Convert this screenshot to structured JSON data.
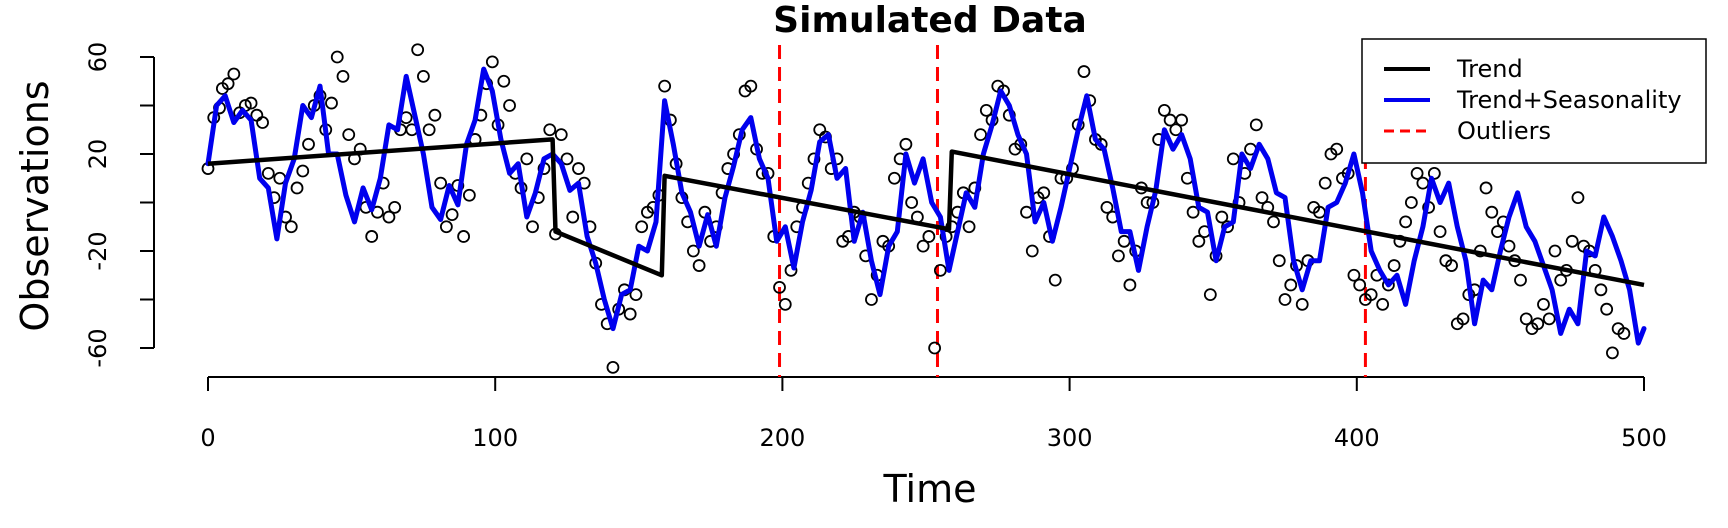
{
  "chart_data": {
    "type": "line",
    "title": "Simulated Data",
    "xlabel": "Time",
    "ylabel": "Observations",
    "xlim": [
      0,
      500
    ],
    "ylim": [
      -60,
      60
    ],
    "x_ticks": [
      "0",
      "100",
      "200",
      "300",
      "400",
      "500"
    ],
    "y_ticks": [
      "-60",
      "-20",
      "20",
      "60"
    ],
    "grid": false,
    "legend_position": "top-right",
    "colors": {
      "trend": "#000000",
      "seasonal": "#0000ee",
      "outlier": "#ff0000",
      "points": "#000000"
    },
    "legend": [
      {
        "label": "Trend",
        "style": "solid",
        "color": "#000000"
      },
      {
        "label": "Trend+Seasonality",
        "style": "solid",
        "color": "#0000ee"
      },
      {
        "label": "Outliers",
        "style": "dashed",
        "color": "#ff0000"
      }
    ],
    "outliers": [
      199,
      254,
      403
    ],
    "trend": [
      [
        0,
        16
      ],
      [
        120,
        26
      ],
      [
        121,
        -12
      ],
      [
        158,
        -30
      ],
      [
        159,
        11
      ],
      [
        258,
        -11
      ],
      [
        259,
        21
      ],
      [
        500,
        -34
      ]
    ],
    "seasonal": [
      [
        0,
        16
      ],
      [
        3,
        40
      ],
      [
        6,
        44
      ],
      [
        9,
        33
      ],
      [
        12,
        38
      ],
      [
        15,
        34
      ],
      [
        18,
        10
      ],
      [
        21,
        6
      ],
      [
        24,
        -15
      ],
      [
        27,
        8
      ],
      [
        30,
        18
      ],
      [
        33,
        40
      ],
      [
        36,
        35
      ],
      [
        39,
        48
      ],
      [
        42,
        20
      ],
      [
        45,
        20
      ],
      [
        48,
        3
      ],
      [
        51,
        -8
      ],
      [
        54,
        6
      ],
      [
        57,
        -3
      ],
      [
        60,
        10
      ],
      [
        63,
        32
      ],
      [
        66,
        30
      ],
      [
        69,
        52
      ],
      [
        72,
        36
      ],
      [
        75,
        20
      ],
      [
        78,
        -2
      ],
      [
        81,
        -7
      ],
      [
        84,
        7
      ],
      [
        87,
        -1
      ],
      [
        90,
        24
      ],
      [
        93,
        34
      ],
      [
        96,
        55
      ],
      [
        99,
        46
      ],
      [
        102,
        26
      ],
      [
        105,
        12
      ],
      [
        108,
        16
      ],
      [
        111,
        -6
      ],
      [
        114,
        4
      ],
      [
        117,
        18
      ],
      [
        120,
        20
      ],
      [
        123,
        16
      ],
      [
        126,
        5
      ],
      [
        129,
        8
      ],
      [
        132,
        -14
      ],
      [
        135,
        -25
      ],
      [
        138,
        -40
      ],
      [
        141,
        -52
      ],
      [
        144,
        -38
      ],
      [
        147,
        -36
      ],
      [
        150,
        -18
      ],
      [
        153,
        -20
      ],
      [
        156,
        -8
      ],
      [
        159,
        42
      ],
      [
        162,
        24
      ],
      [
        165,
        4
      ],
      [
        168,
        -4
      ],
      [
        171,
        -18
      ],
      [
        174,
        -5
      ],
      [
        177,
        -18
      ],
      [
        180,
        2
      ],
      [
        183,
        15
      ],
      [
        186,
        30
      ],
      [
        189,
        35
      ],
      [
        192,
        18
      ],
      [
        195,
        10
      ],
      [
        198,
        -16
      ],
      [
        201,
        -10
      ],
      [
        204,
        -27
      ],
      [
        207,
        -8
      ],
      [
        210,
        5
      ],
      [
        213,
        25
      ],
      [
        216,
        28
      ],
      [
        219,
        10
      ],
      [
        222,
        14
      ],
      [
        225,
        -16
      ],
      [
        228,
        -4
      ],
      [
        231,
        -24
      ],
      [
        234,
        -38
      ],
      [
        237,
        -18
      ],
      [
        240,
        -12
      ],
      [
        243,
        20
      ],
      [
        246,
        8
      ],
      [
        249,
        18
      ],
      [
        252,
        0
      ],
      [
        255,
        -6
      ],
      [
        258,
        -28
      ],
      [
        261,
        -12
      ],
      [
        264,
        4
      ],
      [
        267,
        -2
      ],
      [
        270,
        20
      ],
      [
        273,
        32
      ],
      [
        276,
        46
      ],
      [
        279,
        40
      ],
      [
        282,
        28
      ],
      [
        285,
        20
      ],
      [
        288,
        -8
      ],
      [
        291,
        0
      ],
      [
        294,
        -16
      ],
      [
        297,
        -2
      ],
      [
        300,
        14
      ],
      [
        303,
        30
      ],
      [
        306,
        44
      ],
      [
        309,
        26
      ],
      [
        312,
        22
      ],
      [
        315,
        6
      ],
      [
        318,
        -12
      ],
      [
        321,
        -12
      ],
      [
        324,
        -28
      ],
      [
        327,
        -10
      ],
      [
        330,
        5
      ],
      [
        333,
        30
      ],
      [
        336,
        22
      ],
      [
        339,
        28
      ],
      [
        342,
        18
      ],
      [
        345,
        -2
      ],
      [
        348,
        -4
      ],
      [
        351,
        -24
      ],
      [
        354,
        -10
      ],
      [
        357,
        -8
      ],
      [
        360,
        20
      ],
      [
        363,
        14
      ],
      [
        366,
        24
      ],
      [
        369,
        18
      ],
      [
        372,
        4
      ],
      [
        375,
        2
      ],
      [
        378,
        -24
      ],
      [
        381,
        -36
      ],
      [
        384,
        -24
      ],
      [
        387,
        -24
      ],
      [
        390,
        -2
      ],
      [
        393,
        0
      ],
      [
        396,
        8
      ],
      [
        399,
        20
      ],
      [
        402,
        4
      ],
      [
        405,
        -20
      ],
      [
        408,
        -28
      ],
      [
        411,
        -34
      ],
      [
        414,
        -30
      ],
      [
        417,
        -42
      ],
      [
        420,
        -24
      ],
      [
        423,
        -10
      ],
      [
        426,
        10
      ],
      [
        429,
        0
      ],
      [
        432,
        8
      ],
      [
        435,
        -10
      ],
      [
        438,
        -24
      ],
      [
        441,
        -50
      ],
      [
        444,
        -32
      ],
      [
        447,
        -36
      ],
      [
        450,
        -20
      ],
      [
        453,
        -6
      ],
      [
        456,
        4
      ],
      [
        459,
        -10
      ],
      [
        462,
        -16
      ],
      [
        465,
        -26
      ],
      [
        468,
        -36
      ],
      [
        471,
        -54
      ],
      [
        474,
        -44
      ],
      [
        477,
        -50
      ],
      [
        480,
        -20
      ],
      [
        483,
        -22
      ],
      [
        486,
        -6
      ],
      [
        489,
        -14
      ],
      [
        492,
        -24
      ],
      [
        495,
        -36
      ],
      [
        498,
        -58
      ],
      [
        500,
        -52
      ]
    ],
    "points": [
      [
        0,
        14
      ],
      [
        2,
        35
      ],
      [
        4,
        39
      ],
      [
        5,
        47
      ],
      [
        7,
        49
      ],
      [
        9,
        53
      ],
      [
        11,
        37
      ],
      [
        13,
        40
      ],
      [
        15,
        41
      ],
      [
        17,
        36
      ],
      [
        19,
        33
      ],
      [
        21,
        12
      ],
      [
        23,
        2
      ],
      [
        25,
        10
      ],
      [
        27,
        -6
      ],
      [
        29,
        -10
      ],
      [
        31,
        6
      ],
      [
        33,
        13
      ],
      [
        35,
        24
      ],
      [
        37,
        40
      ],
      [
        39,
        44
      ],
      [
        41,
        30
      ],
      [
        43,
        41
      ],
      [
        45,
        60
      ],
      [
        47,
        52
      ],
      [
        49,
        28
      ],
      [
        51,
        18
      ],
      [
        53,
        22
      ],
      [
        55,
        -2
      ],
      [
        57,
        -14
      ],
      [
        59,
        -4
      ],
      [
        61,
        8
      ],
      [
        63,
        -6
      ],
      [
        65,
        -2
      ],
      [
        67,
        30
      ],
      [
        69,
        35
      ],
      [
        71,
        30
      ],
      [
        73,
        63
      ],
      [
        75,
        52
      ],
      [
        77,
        30
      ],
      [
        79,
        36
      ],
      [
        81,
        8
      ],
      [
        83,
        -10
      ],
      [
        85,
        -5
      ],
      [
        87,
        7
      ],
      [
        89,
        -14
      ],
      [
        91,
        3
      ],
      [
        93,
        26
      ],
      [
        95,
        36
      ],
      [
        97,
        49
      ],
      [
        99,
        58
      ],
      [
        101,
        32
      ],
      [
        103,
        50
      ],
      [
        105,
        40
      ],
      [
        107,
        12
      ],
      [
        109,
        6
      ],
      [
        111,
        18
      ],
      [
        113,
        -10
      ],
      [
        115,
        2
      ],
      [
        117,
        14
      ],
      [
        119,
        30
      ],
      [
        121,
        -13
      ],
      [
        123,
        28
      ],
      [
        125,
        18
      ],
      [
        127,
        -6
      ],
      [
        129,
        14
      ],
      [
        131,
        8
      ],
      [
        133,
        -10
      ],
      [
        135,
        -25
      ],
      [
        137,
        -42
      ],
      [
        139,
        -50
      ],
      [
        141,
        -68
      ],
      [
        143,
        -44
      ],
      [
        145,
        -36
      ],
      [
        147,
        -46
      ],
      [
        149,
        -38
      ],
      [
        151,
        -10
      ],
      [
        153,
        -4
      ],
      [
        155,
        -2
      ],
      [
        157,
        3
      ],
      [
        159,
        48
      ],
      [
        161,
        34
      ],
      [
        163,
        16
      ],
      [
        165,
        2
      ],
      [
        167,
        -8
      ],
      [
        169,
        -20
      ],
      [
        171,
        -26
      ],
      [
        173,
        -4
      ],
      [
        175,
        -16
      ],
      [
        177,
        -10
      ],
      [
        179,
        4
      ],
      [
        181,
        14
      ],
      [
        183,
        20
      ],
      [
        185,
        28
      ],
      [
        187,
        46
      ],
      [
        189,
        48
      ],
      [
        191,
        22
      ],
      [
        193,
        12
      ],
      [
        195,
        12
      ],
      [
        197,
        -14
      ],
      [
        199,
        -35
      ],
      [
        201,
        -42
      ],
      [
        203,
        -28
      ],
      [
        205,
        -10
      ],
      [
        207,
        -2
      ],
      [
        209,
        8
      ],
      [
        211,
        18
      ],
      [
        213,
        30
      ],
      [
        215,
        27
      ],
      [
        217,
        14
      ],
      [
        219,
        18
      ],
      [
        221,
        -16
      ],
      [
        223,
        -14
      ],
      [
        225,
        -4
      ],
      [
        227,
        -6
      ],
      [
        229,
        -22
      ],
      [
        231,
        -40
      ],
      [
        233,
        -30
      ],
      [
        235,
        -16
      ],
      [
        237,
        -18
      ],
      [
        239,
        10
      ],
      [
        241,
        18
      ],
      [
        243,
        24
      ],
      [
        245,
        0
      ],
      [
        247,
        -6
      ],
      [
        249,
        -18
      ],
      [
        251,
        -14
      ],
      [
        253,
        -60
      ],
      [
        255,
        -28
      ],
      [
        257,
        -14
      ],
      [
        259,
        -10
      ],
      [
        261,
        -4
      ],
      [
        263,
        4
      ],
      [
        265,
        -10
      ],
      [
        267,
        6
      ],
      [
        269,
        28
      ],
      [
        271,
        38
      ],
      [
        273,
        34
      ],
      [
        275,
        48
      ],
      [
        277,
        46
      ],
      [
        279,
        36
      ],
      [
        281,
        22
      ],
      [
        283,
        24
      ],
      [
        285,
        -4
      ],
      [
        287,
        -20
      ],
      [
        289,
        2
      ],
      [
        291,
        4
      ],
      [
        293,
        -14
      ],
      [
        295,
        -32
      ],
      [
        297,
        10
      ],
      [
        299,
        10
      ],
      [
        301,
        14
      ],
      [
        303,
        32
      ],
      [
        305,
        54
      ],
      [
        307,
        42
      ],
      [
        309,
        26
      ],
      [
        311,
        24
      ],
      [
        313,
        -2
      ],
      [
        315,
        -6
      ],
      [
        317,
        -22
      ],
      [
        319,
        -16
      ],
      [
        321,
        -34
      ],
      [
        323,
        -20
      ],
      [
        325,
        6
      ],
      [
        327,
        0
      ],
      [
        329,
        0
      ],
      [
        331,
        26
      ],
      [
        333,
        38
      ],
      [
        335,
        34
      ],
      [
        337,
        30
      ],
      [
        339,
        34
      ],
      [
        341,
        10
      ],
      [
        343,
        -4
      ],
      [
        345,
        -16
      ],
      [
        347,
        -12
      ],
      [
        349,
        -38
      ],
      [
        351,
        -22
      ],
      [
        353,
        -6
      ],
      [
        355,
        -10
      ],
      [
        357,
        18
      ],
      [
        359,
        0
      ],
      [
        361,
        12
      ],
      [
        363,
        22
      ],
      [
        365,
        32
      ],
      [
        367,
        2
      ],
      [
        369,
        -2
      ],
      [
        371,
        -8
      ],
      [
        373,
        -24
      ],
      [
        375,
        -40
      ],
      [
        377,
        -34
      ],
      [
        379,
        -26
      ],
      [
        381,
        -42
      ],
      [
        383,
        -24
      ],
      [
        385,
        -2
      ],
      [
        387,
        -4
      ],
      [
        389,
        8
      ],
      [
        391,
        20
      ],
      [
        393,
        22
      ],
      [
        395,
        10
      ],
      [
        397,
        12
      ],
      [
        399,
        -30
      ],
      [
        401,
        -34
      ],
      [
        403,
        -40
      ],
      [
        405,
        -38
      ],
      [
        407,
        -30
      ],
      [
        409,
        -42
      ],
      [
        411,
        -34
      ],
      [
        413,
        -26
      ],
      [
        415,
        -16
      ],
      [
        417,
        -8
      ],
      [
        419,
        0
      ],
      [
        421,
        12
      ],
      [
        423,
        8
      ],
      [
        425,
        -2
      ],
      [
        427,
        12
      ],
      [
        429,
        -12
      ],
      [
        431,
        -24
      ],
      [
        433,
        -26
      ],
      [
        435,
        -50
      ],
      [
        437,
        -48
      ],
      [
        439,
        -38
      ],
      [
        441,
        -36
      ],
      [
        443,
        -20
      ],
      [
        445,
        6
      ],
      [
        447,
        -4
      ],
      [
        449,
        -12
      ],
      [
        451,
        -8
      ],
      [
        453,
        -18
      ],
      [
        455,
        -24
      ],
      [
        457,
        -32
      ],
      [
        459,
        -48
      ],
      [
        461,
        -52
      ],
      [
        463,
        -50
      ],
      [
        465,
        -42
      ],
      [
        467,
        -48
      ],
      [
        469,
        -20
      ],
      [
        471,
        -32
      ],
      [
        473,
        -28
      ],
      [
        475,
        -16
      ],
      [
        477,
        2
      ],
      [
        479,
        -18
      ],
      [
        481,
        -20
      ],
      [
        483,
        -28
      ],
      [
        485,
        -36
      ],
      [
        487,
        -44
      ],
      [
        489,
        -62
      ],
      [
        491,
        -52
      ],
      [
        493,
        -54
      ]
    ]
  }
}
